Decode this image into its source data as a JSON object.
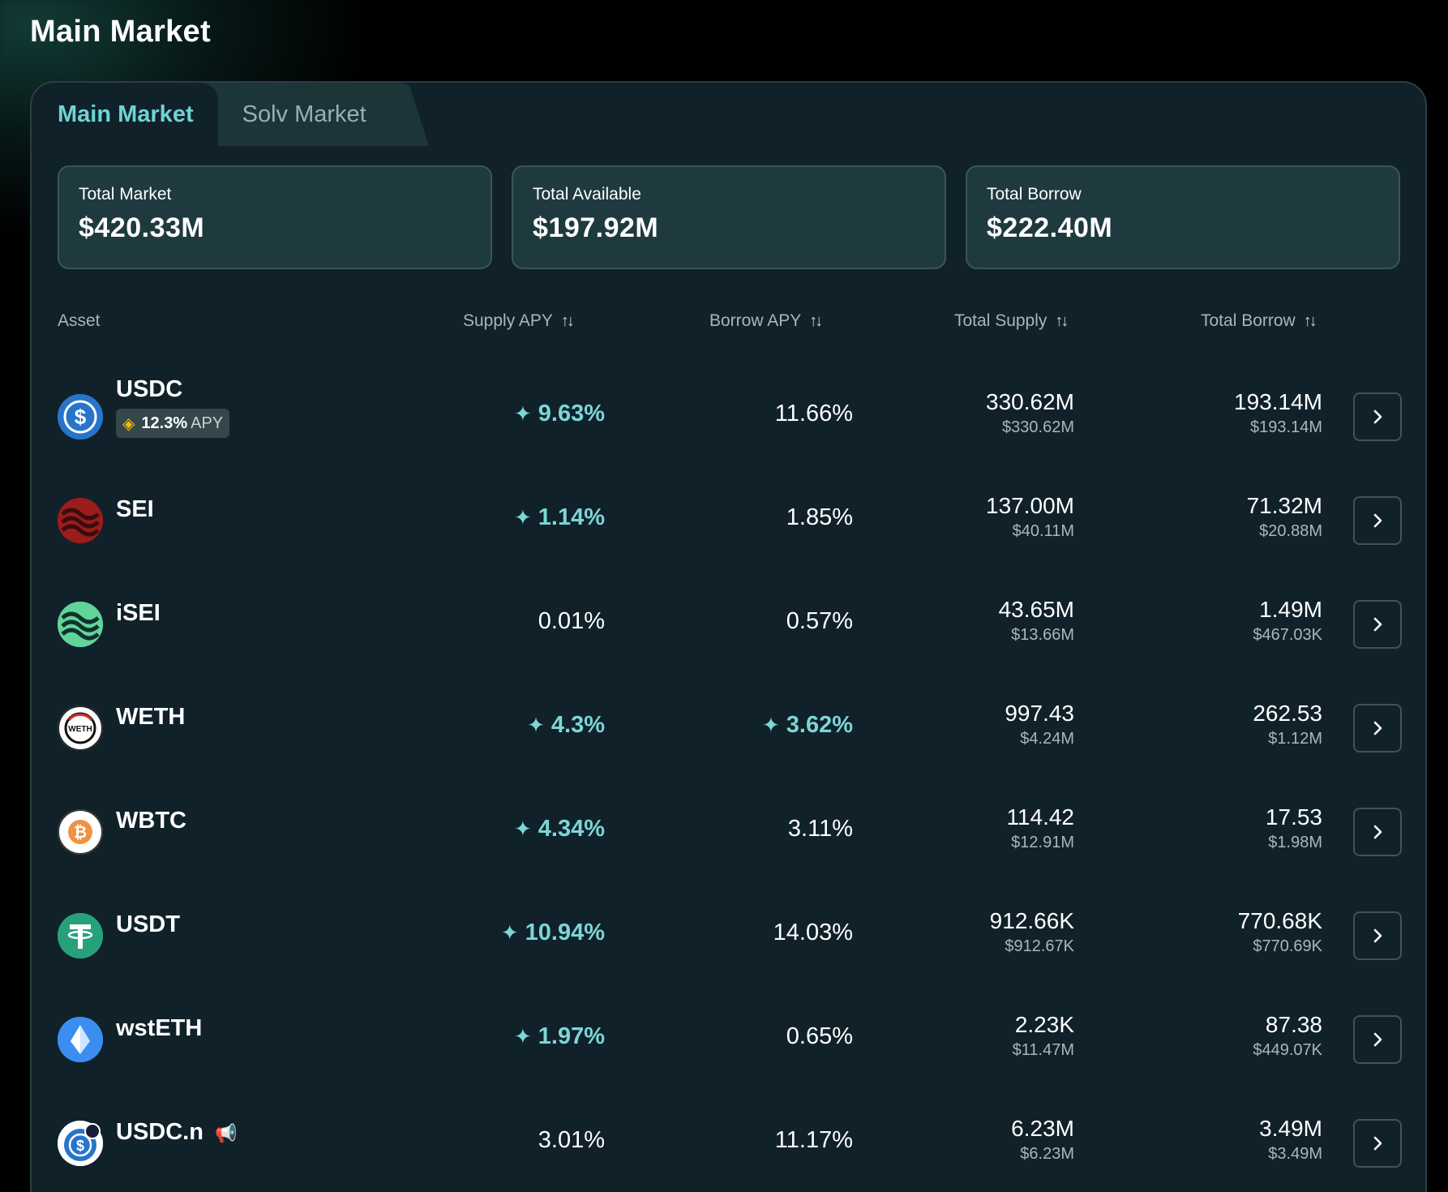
{
  "page": {
    "title": "Main Market"
  },
  "tabs": [
    {
      "label": "Main Market",
      "active": true
    },
    {
      "label": "Solv Market",
      "active": false
    }
  ],
  "stats": [
    {
      "label": "Total Market",
      "value": "$420.33M"
    },
    {
      "label": "Total Available",
      "value": "$197.92M"
    },
    {
      "label": "Total Borrow",
      "value": "$222.40M"
    }
  ],
  "table": {
    "headers": {
      "asset": "Asset",
      "supply_apy": "Supply APY",
      "borrow_apy": "Borrow APY",
      "total_supply": "Total Supply",
      "total_borrow": "Total Borrow"
    },
    "rows": [
      {
        "asset": "USDC",
        "icon": "usdc-icon",
        "badge_value": "12.3%",
        "badge_suffix": "APY",
        "supply_apy": "9.63%",
        "supply_boost": true,
        "borrow_apy": "11.66%",
        "borrow_boost": false,
        "total_supply": "330.62M",
        "total_supply_usd": "$330.62M",
        "total_borrow": "193.14M",
        "total_borrow_usd": "$193.14M"
      },
      {
        "asset": "SEI",
        "icon": "sei-icon",
        "supply_apy": "1.14%",
        "supply_boost": true,
        "borrow_apy": "1.85%",
        "borrow_boost": false,
        "total_supply": "137.00M",
        "total_supply_usd": "$40.11M",
        "total_borrow": "71.32M",
        "total_borrow_usd": "$20.88M"
      },
      {
        "asset": "iSEI",
        "icon": "isei-icon",
        "supply_apy": "0.01%",
        "supply_boost": false,
        "borrow_apy": "0.57%",
        "borrow_boost": false,
        "total_supply": "43.65M",
        "total_supply_usd": "$13.66M",
        "total_borrow": "1.49M",
        "total_borrow_usd": "$467.03K"
      },
      {
        "asset": "WETH",
        "icon": "weth-icon",
        "supply_apy": "4.3%",
        "supply_boost": true,
        "borrow_apy": "3.62%",
        "borrow_boost": true,
        "total_supply": "997.43",
        "total_supply_usd": "$4.24M",
        "total_borrow": "262.53",
        "total_borrow_usd": "$1.12M"
      },
      {
        "asset": "WBTC",
        "icon": "wbtc-icon",
        "supply_apy": "4.34%",
        "supply_boost": true,
        "borrow_apy": "3.11%",
        "borrow_boost": false,
        "total_supply": "114.42",
        "total_supply_usd": "$12.91M",
        "total_borrow": "17.53",
        "total_borrow_usd": "$1.98M"
      },
      {
        "asset": "USDT",
        "icon": "usdt-icon",
        "supply_apy": "10.94%",
        "supply_boost": true,
        "borrow_apy": "14.03%",
        "borrow_boost": false,
        "total_supply": "912.66K",
        "total_supply_usd": "$912.67K",
        "total_borrow": "770.68K",
        "total_borrow_usd": "$770.69K"
      },
      {
        "asset": "wstETH",
        "icon": "wsteth-icon",
        "supply_apy": "1.97%",
        "supply_boost": true,
        "borrow_apy": "0.65%",
        "borrow_boost": false,
        "total_supply": "2.23K",
        "total_supply_usd": "$11.47M",
        "total_borrow": "87.38",
        "total_borrow_usd": "$449.07K"
      },
      {
        "asset": "USDC.n",
        "icon": "usdc-n-icon",
        "supply_apy": "3.01%",
        "supply_boost": false,
        "borrow_apy": "11.17%",
        "borrow_boost": false,
        "total_supply": "6.23M",
        "total_supply_usd": "$6.23M",
        "total_borrow": "3.49M",
        "total_borrow_usd": "$3.49M"
      }
    ]
  },
  "colors": {
    "accent": "#7dd6d6",
    "panel": "#10212a",
    "card": "#1e3a3f",
    "usdc": "#2775ca",
    "sei": "#9b1c1c",
    "isei": "#62d39a",
    "usdt": "#26a17b",
    "wbtc": "#f09242"
  }
}
